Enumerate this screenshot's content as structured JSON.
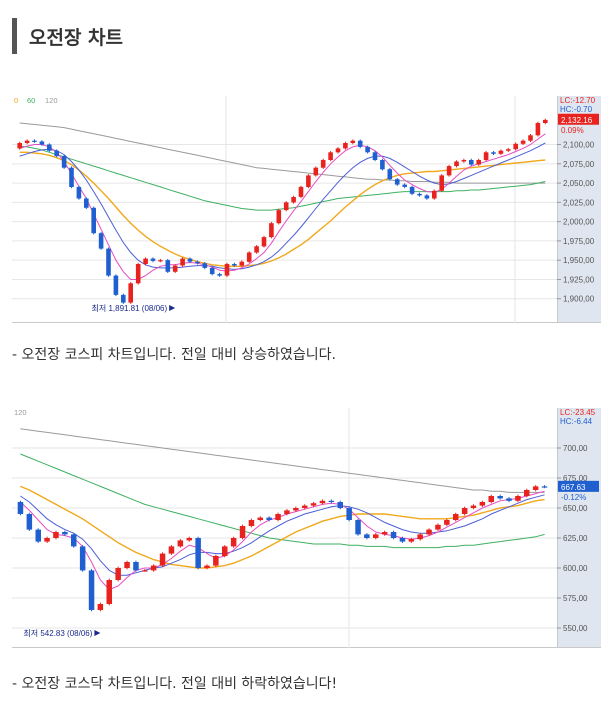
{
  "section_title": "오전장 차트",
  "charts": [
    {
      "chart_data": {
        "type": "candlestick",
        "y_range": [
          1875,
          2150
        ],
        "y_ticks": [
          "2,100,00",
          "2,075,00",
          "2,050,00",
          "2,025,00",
          "2,000,00",
          "1,975,00",
          "1,950,00",
          "1,925,00",
          "1,900,00"
        ],
        "y_tick_values": [
          2100,
          2075,
          2050,
          2025,
          2000,
          1975,
          1950,
          1925,
          1900
        ],
        "ma_labels": [
          "0",
          "60",
          "120"
        ],
        "lc_label": "LC:-12.70",
        "hc_label": "HC:-0.70",
        "price_label": "2,132.16",
        "pct_label": "0.09%",
        "last_price": 2132.16,
        "low_annotation": "최저 1,891.81 (08/06)",
        "low_value": 1891.81,
        "low_index": 21,
        "open": [
          2095,
          2102,
          2105,
          2104,
          2100,
          2092,
          2085,
          2070,
          2045,
          2030,
          2018,
          1985,
          1965,
          1930,
          1905,
          1895,
          1920,
          1945,
          1952,
          1949,
          1950,
          1935,
          1943,
          1952,
          1948,
          1946,
          1940,
          1932,
          1930,
          1945,
          1943,
          1948,
          1960,
          1968,
          1980,
          1998,
          2015,
          2025,
          2032,
          2045,
          2060,
          2070,
          2080,
          2090,
          2095,
          2102,
          2105,
          2097,
          2090,
          2080,
          2068,
          2055,
          2048,
          2045,
          2036,
          2034,
          2030,
          2040,
          2060,
          2072,
          2078,
          2080,
          2074,
          2080,
          2090,
          2088,
          2092,
          2094,
          2101,
          2105,
          2112,
          2128
        ],
        "close": [
          2102,
          2105,
          2104,
          2100,
          2092,
          2085,
          2070,
          2045,
          2030,
          2018,
          1985,
          1965,
          1930,
          1905,
          1895,
          1920,
          1945,
          1952,
          1949,
          1950,
          1935,
          1943,
          1952,
          1948,
          1946,
          1940,
          1932,
          1930,
          1945,
          1943,
          1948,
          1960,
          1968,
          1980,
          1998,
          2015,
          2025,
          2032,
          2045,
          2060,
          2070,
          2080,
          2090,
          2095,
          2102,
          2105,
          2097,
          2090,
          2080,
          2068,
          2055,
          2048,
          2045,
          2036,
          2034,
          2030,
          2040,
          2060,
          2072,
          2078,
          2080,
          2074,
          2080,
          2090,
          2088,
          2092,
          2094,
          2101,
          2105,
          2112,
          2128,
          2132
        ],
        "ma_fast": [
          2095,
          2098,
          2100,
          2100,
          2097,
          2090,
          2078,
          2062,
          2046,
          2030,
          2010,
          1990,
          1970,
          1950,
          1935,
          1925,
          1925,
          1930,
          1937,
          1942,
          1944,
          1944,
          1946,
          1947,
          1946,
          1944,
          1941,
          1937,
          1936,
          1937,
          1940,
          1945,
          1952,
          1960,
          1972,
          1987,
          2001,
          2014,
          2026,
          2039,
          2052,
          2064,
          2075,
          2084,
          2092,
          2097,
          2099,
          2097,
          2092,
          2084,
          2073,
          2063,
          2054,
          2048,
          2043,
          2039,
          2038,
          2042,
          2050,
          2059,
          2067,
          2072,
          2075,
          2078,
          2081,
          2084,
          2087,
          2091,
          2095,
          2100,
          2107,
          2114
        ],
        "ma_mid": [
          2085,
          2088,
          2091,
          2093,
          2094,
          2092,
          2087,
          2078,
          2067,
          2054,
          2039,
          2023,
          2006,
          1989,
          1973,
          1960,
          1950,
          1944,
          1941,
          1940,
          1940,
          1940,
          1941,
          1942,
          1943,
          1943,
          1942,
          1940,
          1939,
          1938,
          1939,
          1941,
          1944,
          1948,
          1954,
          1962,
          1972,
          1982,
          1993,
          2005,
          2017,
          2029,
          2040,
          2051,
          2061,
          2070,
          2077,
          2082,
          2085,
          2085,
          2082,
          2077,
          2071,
          2065,
          2059,
          2054,
          2050,
          2048,
          2049,
          2052,
          2056,
          2060,
          2064,
          2068,
          2072,
          2076,
          2080,
          2084,
          2088,
          2092,
          2097,
          2102
        ],
        "ma_20": [
          2090,
          2090,
          2089,
          2088,
          2086,
          2083,
          2079,
          2074,
          2067,
          2059,
          2050,
          2040,
          2030,
          2019,
          2008,
          1998,
          1989,
          1981,
          1974,
          1968,
          1963,
          1958,
          1954,
          1951,
          1948,
          1946,
          1944,
          1943,
          1942,
          1942,
          1942,
          1943,
          1944,
          1946,
          1949,
          1953,
          1958,
          1964,
          1970,
          1977,
          1985,
          1993,
          2001,
          2010,
          2019,
          2027,
          2035,
          2042,
          2048,
          2053,
          2057,
          2060,
          2062,
          2063,
          2064,
          2065,
          2065,
          2066,
          2067,
          2068,
          2069,
          2070,
          2071,
          2072,
          2073,
          2074,
          2075,
          2076,
          2077,
          2078,
          2079,
          2080
        ],
        "ma_60": [
          2098,
          2097,
          2095,
          2093,
          2090,
          2087,
          2084,
          2081,
          2078,
          2075,
          2072,
          2069,
          2066,
          2063,
          2060,
          2057,
          2054,
          2051,
          2048,
          2045,
          2042,
          2039,
          2036,
          2033,
          2030,
          2027,
          2025,
          2023,
          2021,
          2019,
          2017,
          2016,
          2015,
          2015,
          2015,
          2016,
          2017,
          2018,
          2020,
          2022,
          2024,
          2026,
          2028,
          2030,
          2031,
          2032,
          2033,
          2034,
          2035,
          2036,
          2037,
          2038,
          2039,
          2039,
          2039,
          2039,
          2039,
          2039,
          2039,
          2040,
          2040,
          2041,
          2041,
          2042,
          2043,
          2044,
          2045,
          2046,
          2047,
          2048,
          2050,
          2052
        ],
        "ma_120": [
          2128,
          2127,
          2126,
          2125,
          2124,
          2123,
          2122,
          2120,
          2118,
          2116,
          2114,
          2112,
          2110,
          2108,
          2106,
          2104,
          2102,
          2100,
          2098,
          2096,
          2094,
          2092,
          2090,
          2088,
          2086,
          2084,
          2082,
          2080,
          2078,
          2076,
          2074,
          2072,
          2070,
          2069,
          2068,
          2067,
          2066,
          2065,
          2064,
          2063,
          2062,
          2061,
          2060,
          2059,
          2058,
          2057,
          2056,
          2055,
          2055,
          2054,
          2054,
          2053,
          2053,
          2052,
          2052,
          2052,
          2051,
          2051,
          2051,
          2050,
          2050,
          2050,
          2050,
          2050,
          2050,
          2050,
          2050,
          2050,
          2050,
          2050,
          2050,
          2050
        ]
      },
      "caption": "- 오전장 코스피 차트입니다. 전일 대비 상승하였습니다."
    },
    {
      "chart_data": {
        "type": "candlestick",
        "y_range": [
          540,
          725
        ],
        "y_ticks": [
          "700,00",
          "675,00",
          "650,00",
          "625,00",
          "600,00",
          "575,00",
          "550,00"
        ],
        "y_tick_values": [
          700,
          675,
          650,
          625,
          600,
          575,
          550
        ],
        "ma_labels": [
          "120"
        ],
        "lc_label": "LC:-23.45",
        "hc_label": "HC:-6.44",
        "price_label": "667.63",
        "pct_label": "-0.12%",
        "last_price": 667.63,
        "low_annotation": "최저 542.83 (08/06)",
        "low_value": 542.83,
        "low_index": 9,
        "open": [
          655,
          645,
          632,
          622,
          625,
          630,
          628,
          618,
          598,
          565,
          570,
          590,
          600,
          605,
          598,
          598,
          602,
          612,
          618,
          623,
          625,
          600,
          602,
          610,
          618,
          625,
          635,
          640,
          642,
          640,
          645,
          648,
          650,
          652,
          654,
          656,
          655,
          650,
          640,
          628,
          625,
          628,
          630,
          625,
          622,
          624,
          628,
          632,
          636,
          640,
          645,
          650,
          652,
          655,
          660,
          658,
          656,
          660,
          665,
          668
        ],
        "close": [
          645,
          632,
          622,
          625,
          630,
          628,
          618,
          598,
          565,
          570,
          590,
          600,
          605,
          598,
          598,
          602,
          612,
          618,
          623,
          625,
          600,
          602,
          610,
          618,
          625,
          635,
          640,
          642,
          640,
          645,
          648,
          650,
          652,
          654,
          656,
          655,
          650,
          640,
          628,
          625,
          628,
          630,
          625,
          622,
          624,
          628,
          632,
          636,
          640,
          645,
          650,
          652,
          655,
          660,
          658,
          656,
          660,
          665,
          668,
          667.63
        ],
        "ma_fast": [
          655,
          648,
          640,
          632,
          628,
          627,
          625,
          618,
          605,
          590,
          582,
          585,
          592,
          598,
          600,
          600,
          603,
          608,
          614,
          619,
          617,
          612,
          608,
          610,
          615,
          622,
          630,
          636,
          640,
          642,
          645,
          647,
          649,
          651,
          653,
          654,
          653,
          649,
          642,
          635,
          630,
          628,
          627,
          625,
          624,
          625,
          627,
          630,
          634,
          638,
          642,
          646,
          650,
          653,
          656,
          657,
          658,
          660,
          662,
          664
        ],
        "ma_mid": [
          660,
          655,
          648,
          641,
          636,
          632,
          629,
          624,
          616,
          606,
          598,
          594,
          594,
          596,
          598,
          600,
          601,
          604,
          607,
          611,
          613,
          613,
          612,
          612,
          614,
          617,
          621,
          626,
          631,
          635,
          639,
          642,
          645,
          647,
          649,
          651,
          652,
          651,
          649,
          646,
          642,
          638,
          635,
          632,
          630,
          629,
          629,
          630,
          631,
          633,
          635,
          638,
          641,
          645,
          648,
          651,
          654,
          657,
          659,
          661
        ],
        "ma_20": [
          668,
          665,
          661,
          657,
          653,
          649,
          645,
          641,
          636,
          631,
          626,
          621,
          617,
          613,
          610,
          607,
          605,
          603,
          602,
          601,
          600,
          600,
          601,
          602,
          604,
          607,
          610,
          614,
          618,
          622,
          626,
          630,
          633,
          636,
          639,
          641,
          643,
          644,
          645,
          645,
          645,
          645,
          644,
          643,
          642,
          641,
          641,
          641,
          641,
          642,
          643,
          644,
          646,
          648,
          650,
          651,
          652,
          654,
          656,
          657
        ],
        "ma_60": [
          695,
          692,
          689,
          686,
          683,
          680,
          677,
          674,
          671,
          668,
          665,
          662,
          659,
          656,
          653,
          651,
          649,
          647,
          645,
          643,
          641,
          639,
          637,
          635,
          633,
          631,
          629,
          627,
          625,
          624,
          623,
          622,
          621,
          620,
          620,
          620,
          620,
          619,
          619,
          618,
          618,
          618,
          617,
          617,
          617,
          617,
          617,
          617,
          618,
          618,
          619,
          619,
          620,
          621,
          622,
          623,
          624,
          625,
          626,
          628
        ],
        "ma_120": [
          716,
          715,
          714,
          713,
          712,
          711,
          710,
          709,
          708,
          707,
          706,
          705,
          704,
          703,
          702,
          701,
          700,
          699,
          698,
          697,
          696,
          695,
          694,
          693,
          692,
          691,
          690,
          689,
          688,
          687,
          686,
          685,
          684,
          683,
          682,
          681,
          680,
          679,
          678,
          677,
          676,
          675,
          674,
          673,
          672,
          671,
          670,
          669,
          668,
          667,
          666,
          665,
          665,
          664,
          664,
          663,
          663,
          663,
          663,
          663
        ]
      },
      "caption": "- 오전장 코스닥 차트입니다. 전일 대비 하락하였습니다!"
    }
  ],
  "colors": {
    "up": "#e8231f",
    "down": "#1f5fcf",
    "ma_fast": "#e64ec5",
    "ma_mid": "#4d5fd6",
    "ma_20": "#f0a81c",
    "ma_60": "#3eb061",
    "ma_120": "#9a9a9a",
    "axis_bg": "#dfe6f0",
    "grid": "#e6e6e6",
    "label_red": "#e8231f",
    "label_blue": "#1f5fcf"
  }
}
